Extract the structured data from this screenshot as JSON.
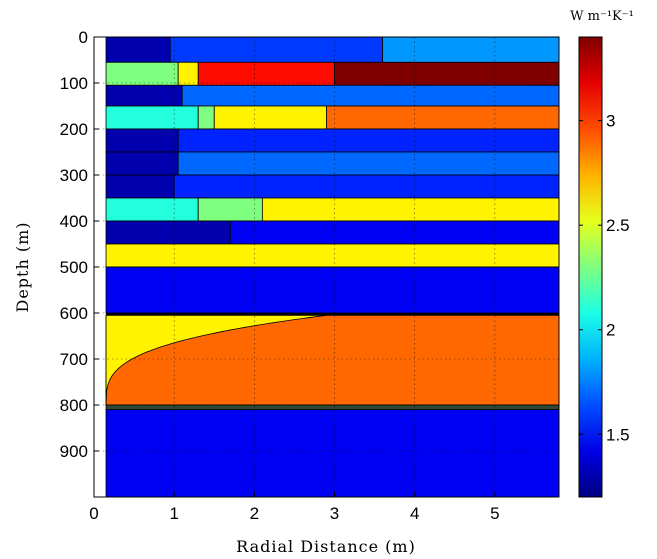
{
  "chart_data": {
    "type": "heatmap",
    "xlabel": "Radial Distance (m)",
    "ylabel": "Depth (m)",
    "xlim": [
      0,
      5.8
    ],
    "ylim": [
      0,
      1000
    ],
    "x_ticks": [
      0,
      1,
      2,
      3,
      4,
      5
    ],
    "y_ticks": [
      0,
      100,
      200,
      300,
      400,
      500,
      600,
      700,
      800,
      900
    ],
    "y_inverted": true,
    "grid": true,
    "colorbar": {
      "label": "W m⁻¹K⁻¹",
      "colormap": "jet",
      "range": [
        1.2,
        3.4
      ],
      "ticks": [
        1.5,
        2,
        2.5,
        3
      ]
    },
    "well_radius": 0.15,
    "layers": [
      {
        "top": 0,
        "bottom": 55,
        "segments": [
          [
            0.15,
            0.95,
            1.3
          ],
          [
            0.95,
            3.6,
            1.6
          ],
          [
            3.6,
            5.8,
            1.8
          ]
        ]
      },
      {
        "top": 55,
        "bottom": 105,
        "segments": [
          [
            0.15,
            1.05,
            2.3
          ],
          [
            1.05,
            1.3,
            2.6
          ],
          [
            1.3,
            3.0,
            3.1
          ],
          [
            3.0,
            5.8,
            3.4
          ]
        ]
      },
      {
        "top": 105,
        "bottom": 150,
        "segments": [
          [
            0.15,
            1.1,
            1.3
          ],
          [
            1.1,
            5.8,
            1.7
          ]
        ]
      },
      {
        "top": 150,
        "bottom": 200,
        "segments": [
          [
            0.15,
            1.3,
            2.1
          ],
          [
            1.3,
            1.5,
            2.3
          ],
          [
            1.5,
            2.9,
            2.6
          ],
          [
            2.9,
            5.8,
            2.9
          ]
        ]
      },
      {
        "top": 200,
        "bottom": 250,
        "segments": [
          [
            0.15,
            1.05,
            1.3
          ],
          [
            1.05,
            5.8,
            1.55
          ]
        ]
      },
      {
        "top": 250,
        "bottom": 300,
        "segments": [
          [
            0.15,
            1.05,
            1.3
          ],
          [
            1.05,
            5.8,
            1.7
          ]
        ]
      },
      {
        "top": 300,
        "bottom": 350,
        "segments": [
          [
            0.15,
            1.0,
            1.3
          ],
          [
            1.0,
            5.8,
            1.55
          ]
        ]
      },
      {
        "top": 350,
        "bottom": 400,
        "segments": [
          [
            0.15,
            1.3,
            2.1
          ],
          [
            1.3,
            2.1,
            2.3
          ],
          [
            2.1,
            5.8,
            2.6
          ]
        ]
      },
      {
        "top": 400,
        "bottom": 450,
        "segments": [
          [
            0.15,
            1.7,
            1.3
          ],
          [
            1.7,
            5.8,
            1.45
          ]
        ]
      },
      {
        "top": 450,
        "bottom": 500,
        "segments": [
          [
            0.15,
            5.8,
            2.6
          ]
        ]
      },
      {
        "top": 500,
        "bottom": 600,
        "segments": [
          [
            0.15,
            5.8,
            1.45
          ]
        ]
      },
      {
        "top": 605,
        "bottom": 800,
        "segments": [
          [
            0.15,
            5.8,
            2.9
          ]
        ]
      },
      {
        "top": 810,
        "bottom": 1000,
        "segments": [
          [
            0.15,
            5.8,
            1.45
          ]
        ]
      }
    ],
    "transition_zone": {
      "top": 605,
      "bottom": 800,
      "near_value": 2.6,
      "far_value": 2.9
    }
  }
}
